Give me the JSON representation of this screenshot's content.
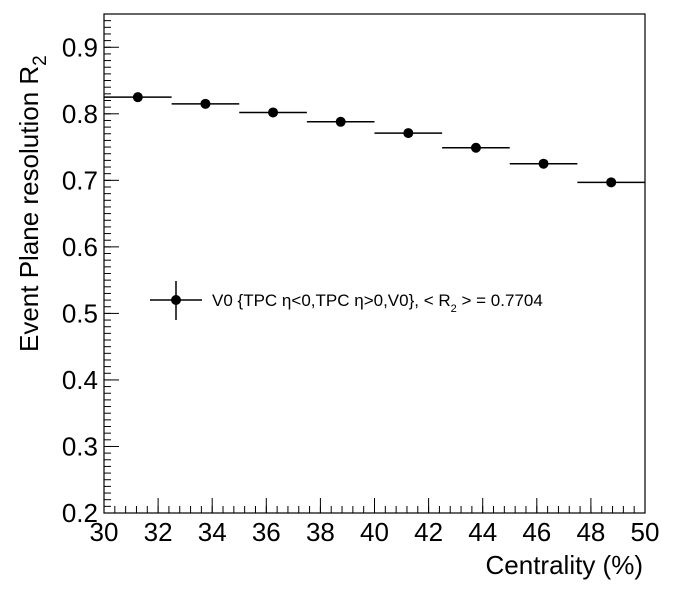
{
  "chart_data": {
    "type": "scatter",
    "xlabel": "Centrality (%)",
    "ylabel_main": "Event Plane resolution R",
    "ylabel_sub": "2",
    "xlim": [
      30,
      50
    ],
    "ylim": [
      0.2,
      0.95
    ],
    "x_ticks": [
      30,
      32,
      34,
      36,
      38,
      40,
      42,
      44,
      46,
      48,
      50
    ],
    "y_ticks": [
      0.2,
      0.3,
      0.4,
      0.5,
      0.6,
      0.7,
      0.8,
      0.9
    ],
    "grid": false,
    "legend_position": "middle-left",
    "series": [
      {
        "name": "V0 {TPC η<0,TPC η>0,V0}, < R2 > = 0.7704",
        "x": [
          31.25,
          33.75,
          36.25,
          38.75,
          41.25,
          43.75,
          46.25,
          48.75
        ],
        "x_err": [
          1.25,
          1.25,
          1.25,
          1.25,
          1.25,
          1.25,
          1.25,
          1.25
        ],
        "y": [
          0.825,
          0.815,
          0.802,
          0.788,
          0.771,
          0.749,
          0.725,
          0.697
        ]
      }
    ]
  },
  "legend": {
    "part1": "V0 {TPC ",
    "eta1": "η",
    "part2": "<0,TPC ",
    "eta2": "η",
    "part3": ">0,V0}, < R",
    "sub": "2",
    "part4": " > = 0.7704"
  }
}
